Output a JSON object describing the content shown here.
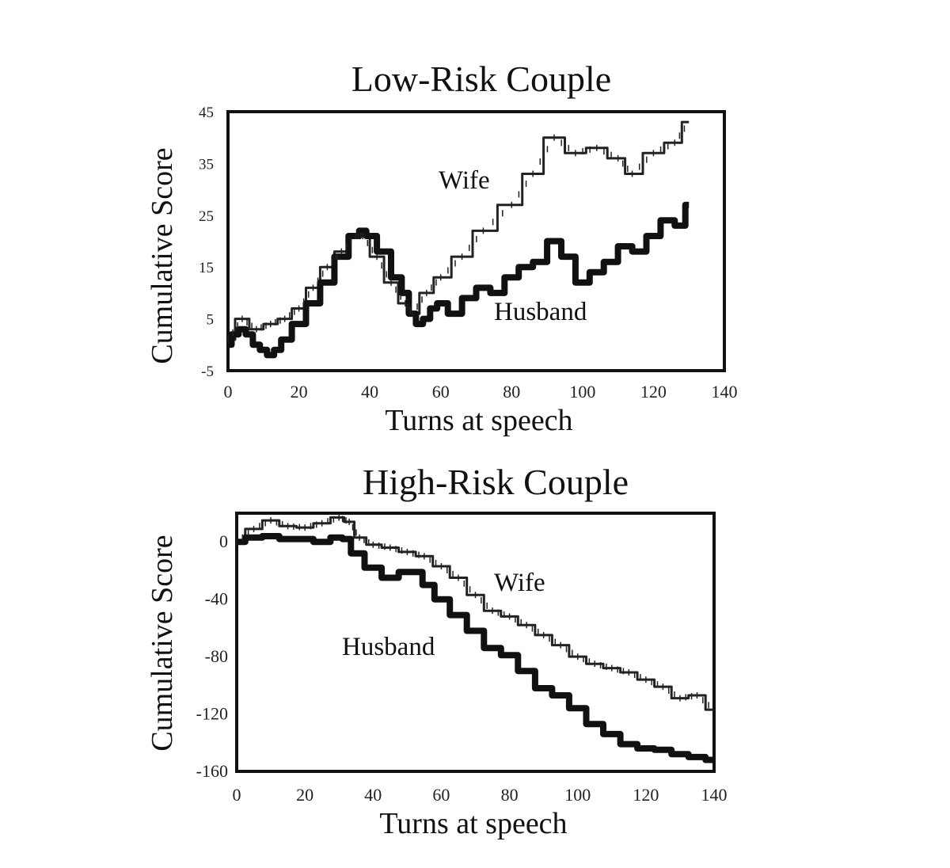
{
  "chart_data": [
    {
      "type": "line",
      "title": "Low-Risk Couple",
      "xlabel": "Turns at speech",
      "ylabel": "Cumulative Score",
      "xlim": [
        0,
        140
      ],
      "ylim": [
        -5,
        45
      ],
      "x_ticks": [
        "0",
        "20",
        "40",
        "60",
        "80",
        "100",
        "120",
        "140"
      ],
      "y_ticks": [
        "45",
        "35",
        "25",
        "15",
        "5",
        "-5"
      ],
      "grid": false,
      "legend": "none",
      "annotations": [
        {
          "text": "Wife",
          "x": 72,
          "y": 35
        },
        {
          "text": "Husband",
          "x": 95,
          "y": 9
        }
      ],
      "series": [
        {
          "name": "Wife",
          "style": "thin-marked",
          "x": [
            0,
            4,
            8,
            12,
            16,
            20,
            24,
            28,
            32,
            36,
            38,
            42,
            46,
            50,
            52,
            56,
            60,
            66,
            72,
            80,
            86,
            92,
            98,
            104,
            110,
            114,
            120,
            126,
            130
          ],
          "y": [
            1,
            5,
            3,
            4,
            5,
            7,
            11,
            15,
            18,
            21,
            21,
            17,
            12,
            8,
            6,
            10,
            13,
            17,
            22,
            27,
            33,
            40,
            37,
            38,
            36,
            33,
            37,
            39,
            43
          ]
        },
        {
          "name": "Husband",
          "style": "thick",
          "x": [
            0,
            2,
            4,
            6,
            8,
            10,
            12,
            14,
            16,
            20,
            24,
            28,
            32,
            36,
            38,
            40,
            44,
            48,
            50,
            52,
            54,
            56,
            58,
            60,
            64,
            68,
            72,
            76,
            80,
            84,
            88,
            92,
            96,
            100,
            104,
            108,
            112,
            116,
            120,
            124,
            128,
            130
          ],
          "y": [
            0,
            2,
            3,
            2,
            0,
            -1,
            -2,
            -1,
            1,
            4,
            8,
            12,
            17,
            21,
            22,
            21,
            18,
            13,
            10,
            6,
            4,
            5,
            7,
            8,
            6,
            9,
            11,
            10,
            13,
            15,
            16,
            20,
            17,
            12,
            14,
            16,
            19,
            18,
            21,
            24,
            23,
            27
          ]
        }
      ]
    },
    {
      "type": "line",
      "title": "High-Risk Couple",
      "xlabel": "Turns at speech",
      "ylabel": "Cumulative Score",
      "xlim": [
        0,
        140
      ],
      "ylim": [
        -160,
        20
      ],
      "x_ticks": [
        "0",
        "20",
        "40",
        "60",
        "80",
        "100",
        "120",
        "140"
      ],
      "y_ticks": [
        "0",
        "-40",
        "-80",
        "-120",
        "-160"
      ],
      "grid": false,
      "legend": "none",
      "annotations": [
        {
          "text": "Wife",
          "x": 78,
          "y": -27
        },
        {
          "text": "Husband",
          "x": 46,
          "y": -71
        }
      ],
      "series": [
        {
          "name": "Wife",
          "style": "thin-marked",
          "x": [
            0,
            5,
            10,
            15,
            20,
            25,
            30,
            33,
            36,
            40,
            45,
            50,
            55,
            60,
            65,
            70,
            75,
            80,
            85,
            90,
            95,
            100,
            105,
            110,
            115,
            120,
            125,
            130,
            135,
            140
          ],
          "y": [
            0,
            9,
            15,
            11,
            10,
            13,
            17,
            14,
            3,
            -2,
            -4,
            -7,
            -10,
            -17,
            -25,
            -37,
            -48,
            -52,
            -58,
            -65,
            -72,
            -80,
            -85,
            -88,
            -91,
            -96,
            -101,
            -109,
            -107,
            -117
          ]
        },
        {
          "name": "Husband",
          "style": "thick",
          "x": [
            0,
            5,
            10,
            15,
            20,
            25,
            30,
            32,
            35,
            40,
            45,
            50,
            53,
            56,
            60,
            65,
            70,
            75,
            80,
            85,
            90,
            95,
            100,
            105,
            110,
            115,
            120,
            125,
            130,
            135,
            140
          ],
          "y": [
            0,
            3,
            4,
            2,
            2,
            0,
            3,
            2,
            -8,
            -18,
            -25,
            -21,
            -21,
            -30,
            -40,
            -51,
            -62,
            -74,
            -79,
            -90,
            -102,
            -107,
            -116,
            -127,
            -134,
            -141,
            -144,
            -145,
            -148,
            -150,
            -152
          ]
        }
      ]
    }
  ]
}
